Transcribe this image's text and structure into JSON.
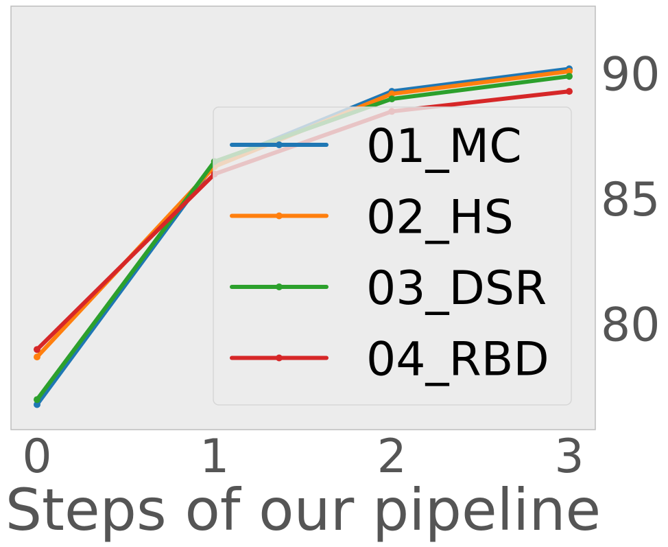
{
  "chart_data": {
    "type": "line",
    "xlabel": "Steps of our pipeline",
    "ylabel": "",
    "x": [
      0,
      1,
      2,
      3
    ],
    "xticks": [
      "0",
      "1",
      "2",
      "3"
    ],
    "yticks": [
      "80",
      "85",
      "90"
    ],
    "ylim": [
      75.8,
      92.7
    ],
    "grid": false,
    "background_color": "#ececec",
    "legend_position": "lower-right",
    "series": [
      {
        "name": "01_MC",
        "color": "#1f77b4",
        "values": [
          76.8,
          86.4,
          89.3,
          90.2
        ]
      },
      {
        "name": "02_HS",
        "color": "#ff7f0e",
        "values": [
          78.7,
          86.3,
          89.2,
          90.1
        ]
      },
      {
        "name": "03_DSR",
        "color": "#2ca02c",
        "values": [
          77.0,
          86.5,
          89.0,
          89.9
        ]
      },
      {
        "name": "04_RBD",
        "color": "#d62728",
        "values": [
          79.0,
          86.0,
          88.5,
          89.3
        ]
      }
    ]
  }
}
